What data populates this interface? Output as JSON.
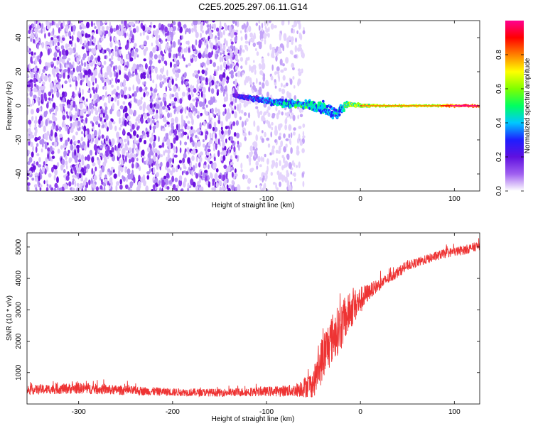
{
  "title": "C2E5.2025.297.06.11.G14",
  "chart_data": [
    {
      "type": "heatmap",
      "xlabel": "Height of straight line (km)",
      "ylabel": "Frequency (Hz)",
      "xlim": [
        -355,
        127
      ],
      "ylim": [
        -50,
        50
      ],
      "xticks": [
        -300,
        -200,
        -100,
        0,
        100
      ],
      "yticks": [
        -40,
        -20,
        0,
        20,
        40
      ],
      "colorbar": {
        "label": "Normalized spectral amplitude",
        "range": [
          0,
          1
        ],
        "ticks": [
          "0.0",
          "0.2",
          "0.4",
          "0.6",
          "0.8"
        ],
        "colormap": [
          "#ffffff",
          "#c8a8f8",
          "#7a20e0",
          "#2020ff",
          "#00c8ff",
          "#00ff80",
          "#80ff00",
          "#ffff00",
          "#ff8000",
          "#ff0000",
          "#ff0090"
        ]
      },
      "regions": [
        {
          "x_range": [
            -355,
            -130
          ],
          "freq_range": [
            -50,
            50
          ],
          "description": "broadband noise",
          "amplitude": 0.2
        },
        {
          "x_range": [
            -130,
            -60
          ],
          "freq_range": [
            -50,
            50
          ],
          "description": "fading noise",
          "amplitude": 0.1
        }
      ],
      "signal_track": [
        {
          "x": -135,
          "freq": 6,
          "width": 2,
          "amplitude": 0.25
        },
        {
          "x": -110,
          "freq": 4,
          "width": 4,
          "amplitude": 0.35
        },
        {
          "x": -90,
          "freq": 2,
          "width": 5,
          "amplitude": 0.45
        },
        {
          "x": -70,
          "freq": 1,
          "width": 6,
          "amplitude": 0.5
        },
        {
          "x": -50,
          "freq": 0,
          "width": 8,
          "amplitude": 0.5
        },
        {
          "x": -35,
          "freq": -2,
          "width": 10,
          "amplitude": 0.45
        },
        {
          "x": -25,
          "freq": -5,
          "width": 10,
          "amplitude": 0.4
        },
        {
          "x": -15,
          "freq": 1,
          "width": 4,
          "amplitude": 0.6
        },
        {
          "x": 0,
          "freq": 0,
          "width": 2,
          "amplitude": 0.7
        },
        {
          "x": 20,
          "freq": 0,
          "width": 1.5,
          "amplitude": 0.65
        },
        {
          "x": 50,
          "freq": 0,
          "width": 1.5,
          "amplitude": 0.65
        },
        {
          "x": 80,
          "freq": 0,
          "width": 1.5,
          "amplitude": 0.65
        },
        {
          "x": 110,
          "freq": 0,
          "width": 1.5,
          "amplitude": 0.95
        },
        {
          "x": 127,
          "freq": 0,
          "width": 1.5,
          "amplitude": 0.8
        }
      ]
    },
    {
      "type": "line",
      "xlabel": "Height of straight line (km)",
      "ylabel": "SNR (10 * v/v)",
      "xlim": [
        -355,
        127
      ],
      "ylim": [
        0,
        5450
      ],
      "xticks": [
        -300,
        -200,
        -100,
        0,
        100
      ],
      "yticks": [
        1000,
        2000,
        3000,
        4000,
        5000
      ],
      "color": "#ee3333",
      "series": [
        {
          "x": [
            -355,
            -300,
            -250,
            -200,
            -150,
            -100,
            -70,
            -50,
            -40,
            -30,
            -20,
            -10,
            0,
            10,
            20,
            30,
            40,
            50,
            70,
            90,
            110,
            127
          ],
          "mean": [
            450,
            500,
            430,
            380,
            360,
            400,
            430,
            650,
            1500,
            2100,
            2500,
            3000,
            3300,
            3600,
            3800,
            4000,
            4200,
            4400,
            4600,
            4800,
            4900,
            5050
          ],
          "spread": [
            300,
            350,
            300,
            250,
            250,
            300,
            400,
            900,
            1600,
            1600,
            1500,
            1200,
            900,
            500,
            400,
            350,
            350,
            300,
            300,
            300,
            300,
            300
          ]
        }
      ]
    }
  ]
}
